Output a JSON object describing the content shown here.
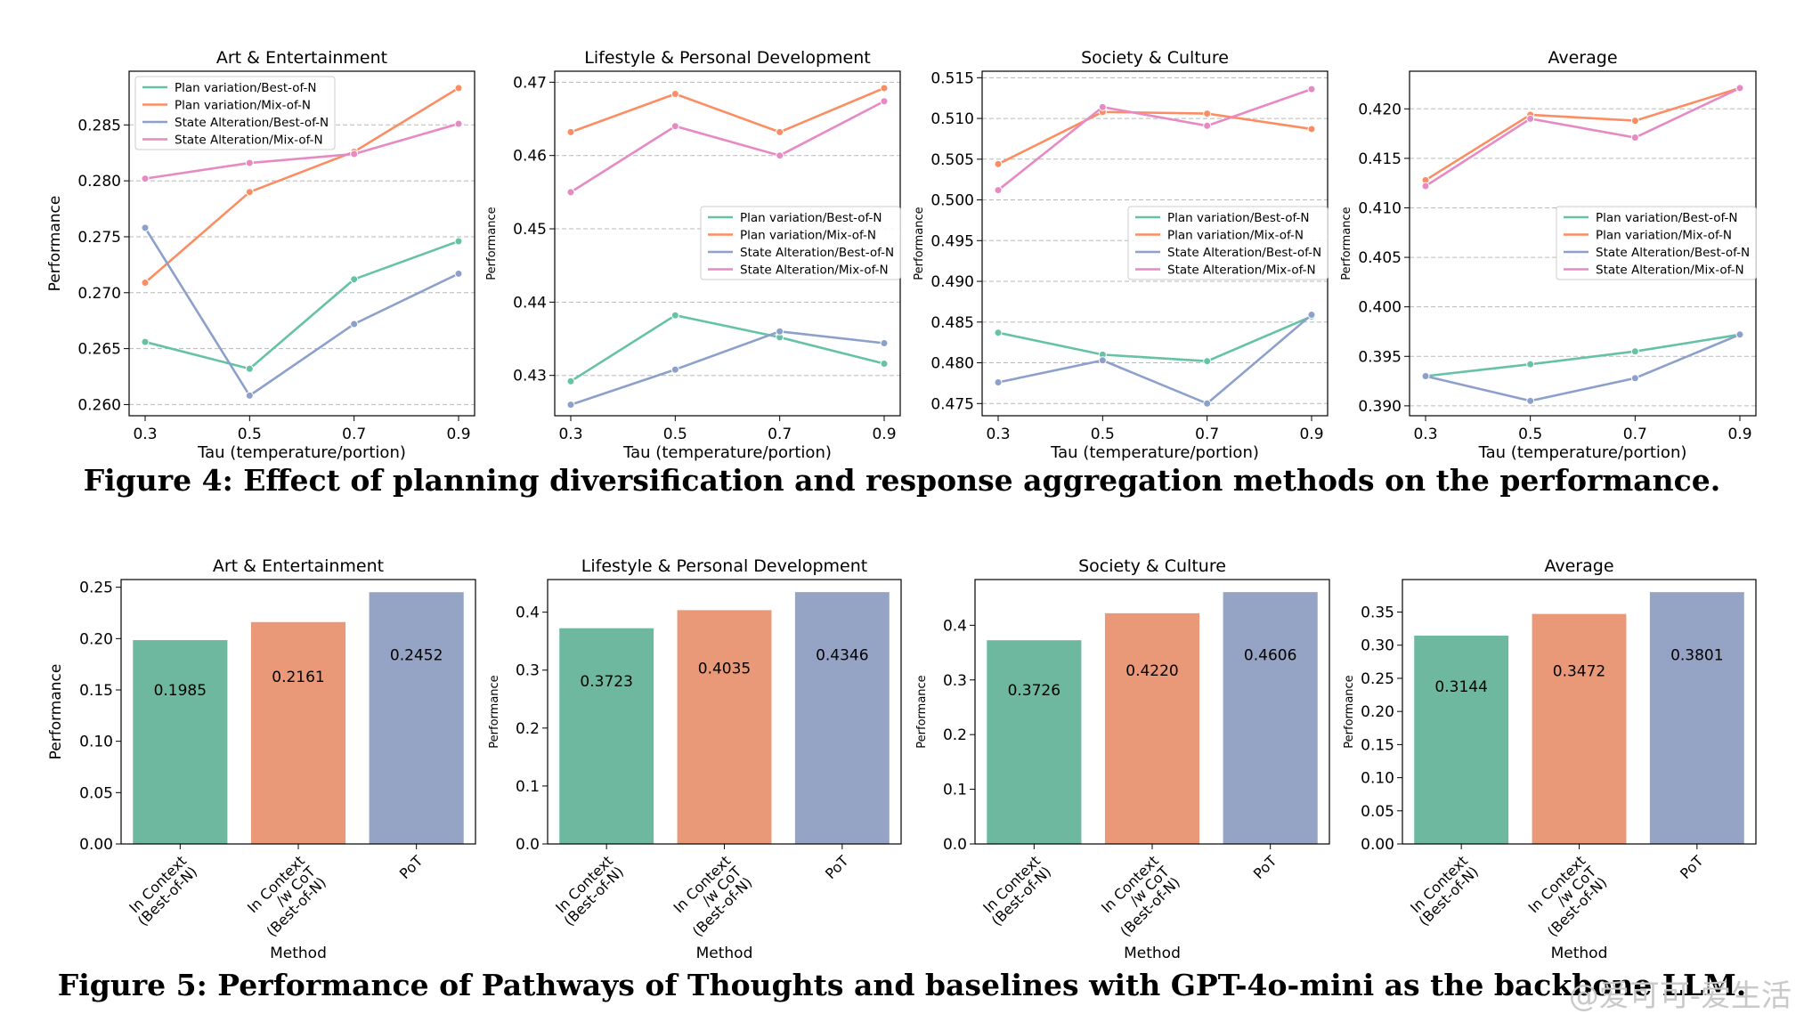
{
  "figure4": {
    "caption": "Figure 4: Effect of planning diversification and response aggregation methods on the performance."
  },
  "figure5": {
    "caption": "Figure 5: Performance of Pathways of Thoughts and baselines with GPT-4o-mini as the backbone LLM."
  },
  "watermark": "@爱可可-爱生活",
  "colors": {
    "green": "#66c2a5",
    "orange": "#fc8d62",
    "blue": "#8da0cb",
    "pink": "#e78ac3",
    "bar_green": "#6fb8a0",
    "bar_orange": "#e99977",
    "bar_blue": "#95a4c4"
  },
  "chart_data": [
    {
      "type": "line",
      "title": "Art & Entertainment",
      "xlabel": "Tau (temperature/portion)",
      "ylabel": "Performance",
      "x": [
        0.3,
        0.5,
        0.7,
        0.9
      ],
      "xticks": [
        "0.3",
        "0.5",
        "0.7",
        "0.9"
      ],
      "ylim": [
        0.259,
        0.2898
      ],
      "yticks": [
        "0.260",
        "0.265",
        "0.270",
        "0.275",
        "0.280",
        "0.285"
      ],
      "legend": "top-left",
      "grid": "y",
      "series": [
        {
          "name": "Plan variation/Best-of-N",
          "color": "#66c2a5",
          "values": [
            0.2656,
            0.2632,
            0.2712,
            0.2746
          ]
        },
        {
          "name": "Plan variation/Mix-of-N",
          "color": "#fc8d62",
          "values": [
            0.2709,
            0.279,
            0.2826,
            0.2883
          ]
        },
        {
          "name": "State Alteration/Best-of-N",
          "color": "#8da0cb",
          "values": [
            0.2758,
            0.2608,
            0.2672,
            0.2717
          ]
        },
        {
          "name": "State Alteration/Mix-of-N",
          "color": "#e78ac3",
          "values": [
            0.2802,
            0.2816,
            0.2824,
            0.2851
          ]
        }
      ]
    },
    {
      "type": "line",
      "title": "Lifestyle & Personal Development",
      "xlabel": "Tau (temperature/portion)",
      "ylabel": "Performance",
      "x": [
        0.3,
        0.5,
        0.7,
        0.9
      ],
      "xticks": [
        "0.3",
        "0.5",
        "0.7",
        "0.9"
      ],
      "ylim": [
        0.4245,
        0.4715
      ],
      "yticks": [
        "0.43",
        "0.44",
        "0.45",
        "0.46",
        "0.47"
      ],
      "legend": "center-right",
      "grid": "y",
      "series": [
        {
          "name": "Plan variation/Best-of-N",
          "color": "#66c2a5",
          "values": [
            0.4292,
            0.4382,
            0.4352,
            0.4316
          ]
        },
        {
          "name": "Plan variation/Mix-of-N",
          "color": "#fc8d62",
          "values": [
            0.4632,
            0.4684,
            0.4632,
            0.4692
          ]
        },
        {
          "name": "State Alteration/Best-of-N",
          "color": "#8da0cb",
          "values": [
            0.426,
            0.4308,
            0.436,
            0.4344
          ]
        },
        {
          "name": "State Alteration/Mix-of-N",
          "color": "#e78ac3",
          "values": [
            0.455,
            0.464,
            0.46,
            0.4674
          ]
        }
      ]
    },
    {
      "type": "line",
      "title": "Society & Culture",
      "xlabel": "Tau (temperature/portion)",
      "ylabel": "Performance",
      "x": [
        0.3,
        0.5,
        0.7,
        0.9
      ],
      "xticks": [
        "0.3",
        "0.5",
        "0.7",
        "0.9"
      ],
      "ylim": [
        0.4735,
        0.5158
      ],
      "yticks": [
        "0.475",
        "0.480",
        "0.485",
        "0.490",
        "0.495",
        "0.500",
        "0.505",
        "0.510",
        "0.515"
      ],
      "legend": "center-right",
      "grid": "y",
      "series": [
        {
          "name": "Plan variation/Best-of-N",
          "color": "#66c2a5",
          "values": [
            0.4837,
            0.481,
            0.4802,
            0.4857
          ]
        },
        {
          "name": "Plan variation/Mix-of-N",
          "color": "#fc8d62",
          "values": [
            0.5044,
            0.5108,
            0.5106,
            0.5087
          ]
        },
        {
          "name": "State Alteration/Best-of-N",
          "color": "#8da0cb",
          "values": [
            0.4776,
            0.4803,
            0.475,
            0.4859
          ]
        },
        {
          "name": "State Alteration/Mix-of-N",
          "color": "#e78ac3",
          "values": [
            0.5012,
            0.5114,
            0.5091,
            0.5136
          ]
        }
      ]
    },
    {
      "type": "line",
      "title": "Average",
      "xlabel": "Tau (temperature/portion)",
      "ylabel": "Performance",
      "x": [
        0.3,
        0.5,
        0.7,
        0.9
      ],
      "xticks": [
        "0.3",
        "0.5",
        "0.7",
        "0.9"
      ],
      "ylim": [
        0.389,
        0.4238
      ],
      "yticks": [
        "0.390",
        "0.395",
        "0.400",
        "0.405",
        "0.410",
        "0.415",
        "0.420"
      ],
      "legend": "center-right",
      "grid": "y",
      "series": [
        {
          "name": "Plan variation/Best-of-N",
          "color": "#66c2a5",
          "values": [
            0.393,
            0.3942,
            0.3955,
            0.3972
          ]
        },
        {
          "name": "Plan variation/Mix-of-N",
          "color": "#fc8d62",
          "values": [
            0.4128,
            0.4194,
            0.4188,
            0.4221
          ]
        },
        {
          "name": "State Alteration/Best-of-N",
          "color": "#8da0cb",
          "values": [
            0.393,
            0.3905,
            0.3928,
            0.3972
          ]
        },
        {
          "name": "State Alteration/Mix-of-N",
          "color": "#e78ac3",
          "values": [
            0.4122,
            0.419,
            0.4171,
            0.4221
          ]
        }
      ]
    },
    {
      "type": "bar",
      "title": "Art & Entertainment",
      "xlabel": "Method",
      "ylabel": "Performance",
      "categories": [
        "In Context\n(Best-of-N)",
        "In Context\n/w CoT\n(Best-of-N)",
        "PoT"
      ],
      "values": [
        0.1985,
        0.2161,
        0.2452
      ],
      "value_labels": [
        "0.1985",
        "0.2161",
        "0.2452"
      ],
      "ylim": [
        0,
        0.2575
      ],
      "yticks": [
        "0.00",
        "0.05",
        "0.10",
        "0.15",
        "0.20",
        "0.25"
      ]
    },
    {
      "type": "bar",
      "title": "Lifestyle & Personal Development",
      "xlabel": "Method",
      "ylabel": "Performance",
      "categories": [
        "In Context\n(Best-of-N)",
        "In Context\n/w CoT\n(Best-of-N)",
        "PoT"
      ],
      "values": [
        0.3723,
        0.4035,
        0.4346
      ],
      "value_labels": [
        "0.3723",
        "0.4035",
        "0.4346"
      ],
      "ylim": [
        0,
        0.4563
      ],
      "yticks": [
        "0.0",
        "0.1",
        "0.2",
        "0.3",
        "0.4"
      ]
    },
    {
      "type": "bar",
      "title": "Society & Culture",
      "xlabel": "Method",
      "ylabel": "Performance",
      "categories": [
        "In Context\n(Best-of-N)",
        "In Context\n/w CoT\n(Best-of-N)",
        "PoT"
      ],
      "values": [
        0.3726,
        0.422,
        0.4606
      ],
      "value_labels": [
        "0.3726",
        "0.4220",
        "0.4606"
      ],
      "ylim": [
        0,
        0.4836
      ],
      "yticks": [
        "0.0",
        "0.1",
        "0.2",
        "0.3",
        "0.4"
      ]
    },
    {
      "type": "bar",
      "title": "Average",
      "xlabel": "Method",
      "ylabel": "Performance",
      "categories": [
        "In Context\n(Best-of-N)",
        "In Context\n/w CoT\n(Best-of-N)",
        "PoT"
      ],
      "values": [
        0.3144,
        0.3472,
        0.3801
      ],
      "value_labels": [
        "0.3144",
        "0.3472",
        "0.3801"
      ],
      "ylim": [
        0,
        0.3991
      ],
      "yticks": [
        "0.00",
        "0.05",
        "0.10",
        "0.15",
        "0.20",
        "0.25",
        "0.30",
        "0.35"
      ]
    }
  ]
}
